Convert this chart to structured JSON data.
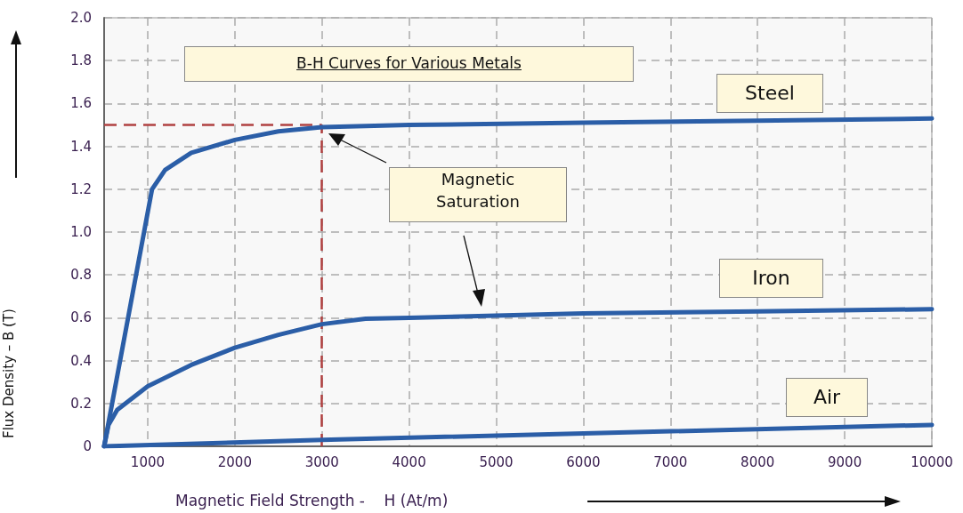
{
  "chart_data": {
    "type": "line",
    "title": "B-H Curves for Various Metals",
    "xlabel": "Magnetic Field Strength -    H (At/m)",
    "ylabel": "Flux Density – B (T)",
    "series": [
      {
        "name": "Steel",
        "color": "#2b5ea7",
        "x": [
          500,
          1050,
          1200,
          1500,
          2000,
          2500,
          3000,
          4000,
          6000,
          8000,
          10000
        ],
        "values": [
          0,
          1.2,
          1.29,
          1.37,
          1.43,
          1.47,
          1.49,
          1.5,
          1.51,
          1.52,
          1.53
        ]
      },
      {
        "name": "Iron",
        "color": "#2b5ea7",
        "x": [
          500,
          550,
          650,
          1000,
          1500,
          2000,
          2500,
          3000,
          3500,
          4000,
          6000,
          8000,
          10000
        ],
        "values": [
          0,
          0.1,
          0.17,
          0.28,
          0.38,
          0.46,
          0.52,
          0.57,
          0.595,
          0.6,
          0.62,
          0.63,
          0.64
        ]
      },
      {
        "name": "Air",
        "color": "#2b5ea7",
        "x": [
          500,
          3000,
          10000
        ],
        "values": [
          0,
          0.03,
          0.1
        ]
      }
    ],
    "xlim": [
      500,
      10000
    ],
    "xticks": [
      1000,
      2000,
      3000,
      4000,
      5000,
      6000,
      7000,
      8000,
      9000,
      10000
    ],
    "ylim": [
      0,
      2
    ],
    "yticks": [
      0,
      {
        "value": 0.2,
        "label": "0.2"
      },
      {
        "value": 0.4,
        "label": "0.4"
      },
      {
        "value": 0.6,
        "label": "0.6"
      },
      {
        "value": 0.8,
        "label": "0.8"
      },
      {
        "value": 1,
        "label": "1.0"
      },
      {
        "value": 1.2,
        "label": "1.2"
      },
      {
        "value": 1.4,
        "label": "1.4"
      },
      {
        "value": 1.6,
        "label": "1.6"
      },
      {
        "value": 1.8,
        "label": "1.8"
      },
      {
        "value": 2,
        "label": "2.0"
      }
    ],
    "grid": true,
    "marker": "none",
    "line_style": "solid",
    "legend": false,
    "ref_lines": [
      {
        "axis": "y",
        "value": 1.5,
        "color": "#b04040",
        "line_style": "dashed"
      },
      {
        "axis": "x",
        "value": 3000,
        "color": "#b04040",
        "line_style": "dashed"
      }
    ],
    "annotations": [
      "Magnetic\nSaturation"
    ]
  }
}
